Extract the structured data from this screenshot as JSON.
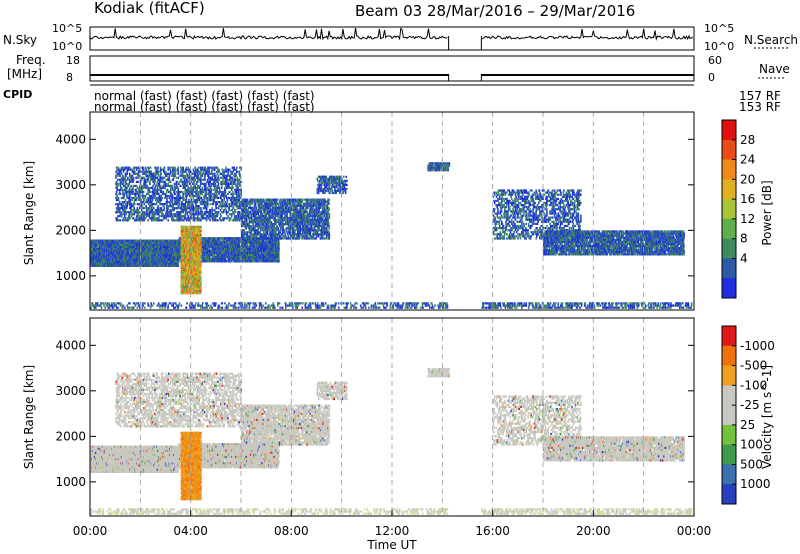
{
  "header": {
    "station": "Kodiak (fitACF)",
    "beam_period": "Beam 03  28/Mar/2016 – 29/Mar/2016"
  },
  "strip_nsky": {
    "left_label": "N.Sky",
    "right_label": "N.Search",
    "left_ticks": [
      "10^5",
      "10^0"
    ],
    "right_ticks": [
      "10^5",
      "10^0"
    ]
  },
  "strip_freq": {
    "left_label_1": "Freq.",
    "left_label_2": "[MHz]",
    "right_label": "Nave",
    "left_ticks": [
      "18",
      "8"
    ],
    "right_ticks": [
      "60",
      "0"
    ]
  },
  "cpid": {
    "label": "CPID",
    "row1_text": "normal  (fast)  (fast)  (fast)  (fast)  (fast)",
    "row2_text": "normal  (fast)  (fast)  (fast)  (fast)  (fast)",
    "right_text_1": "157 RF",
    "right_text_2": "153 RF"
  },
  "chart_data": [
    {
      "type": "heatmap",
      "panel": "power",
      "ylabel": "Slant Range [km]",
      "ylim": [
        250,
        4600
      ],
      "yticks": [
        1000,
        2000,
        3000,
        4000
      ],
      "xlim": [
        0,
        24
      ],
      "colorbar": {
        "label": "Power [dB]",
        "ticks": [
          4,
          8,
          12,
          16,
          20,
          24,
          28
        ],
        "colors": [
          "#1f2fe0",
          "#2c5aa8",
          "#3f8a5f",
          "#5fb04a",
          "#a8c63a",
          "#e0b020",
          "#f08a1a",
          "#e84a18",
          "#e01010"
        ]
      }
    },
    {
      "type": "heatmap",
      "panel": "velocity",
      "ylabel": "Velocity  [m s^-1]",
      "y_axis_label": "Slant Range [km]",
      "ylim": [
        250,
        4600
      ],
      "yticks": [
        1000,
        2000,
        3000,
        4000
      ],
      "xlim": [
        0,
        24
      ],
      "colorbar": {
        "label": "Velocity  [m s^-1]",
        "ticks": [
          "1000",
          "500",
          "100",
          "25",
          "-25",
          "-100",
          "-500",
          "-1000"
        ],
        "colors": [
          "#2840c0",
          "#3a6fb0",
          "#3f9a4a",
          "#74c040",
          "#c8c8c0",
          "#c8c8c0",
          "#f0a020",
          "#f07010",
          "#e01818"
        ]
      }
    }
  ],
  "time_axis": {
    "label": "Time UT",
    "ticks": [
      "00:00",
      "04:00",
      "08:00",
      "12:00",
      "16:00",
      "20:00",
      "00:00"
    ]
  }
}
